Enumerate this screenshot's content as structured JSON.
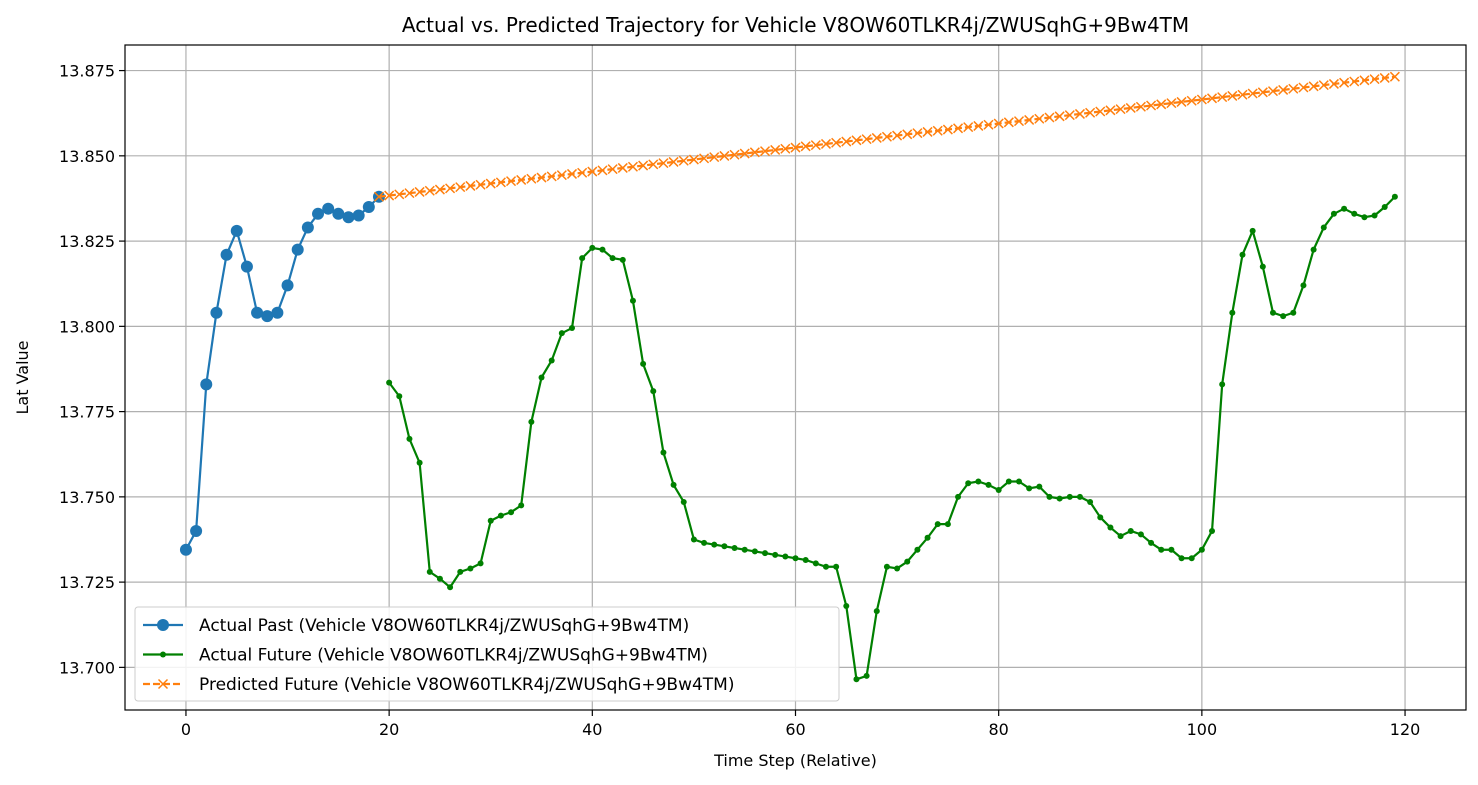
{
  "chart_data": {
    "type": "line",
    "title": "Actual vs. Predicted Trajectory for Vehicle V8OW60TLKR4j/ZWUSqhG+9Bw4TM",
    "xlabel": "Time Step (Relative)",
    "ylabel": "Lat Value",
    "xlim": [
      -6,
      126
    ],
    "ylim": [
      13.6875,
      13.8825
    ],
    "xticks": [
      0,
      20,
      40,
      60,
      80,
      100,
      120
    ],
    "yticks": [
      13.7,
      13.725,
      13.75,
      13.775,
      13.8,
      13.825,
      13.85,
      13.875
    ],
    "xtick_labels": [
      "0",
      "20",
      "40",
      "60",
      "80",
      "100",
      "120"
    ],
    "ytick_labels": [
      "13.700",
      "13.725",
      "13.750",
      "13.775",
      "13.800",
      "13.825",
      "13.850",
      "13.875"
    ],
    "grid": true,
    "legend_position": "lower-left",
    "series": [
      {
        "name": "Actual Past (Vehicle V8OW60TLKR4j/ZWUSqhG+9Bw4TM)",
        "color": "#1f77b4",
        "marker": "circle-large",
        "line": "solid",
        "x_start": 0,
        "values": [
          13.7345,
          13.74,
          13.783,
          13.804,
          13.821,
          13.828,
          13.8175,
          13.804,
          13.803,
          13.804,
          13.812,
          13.8225,
          13.829,
          13.833,
          13.8345,
          13.833,
          13.832,
          13.8325,
          13.835,
          13.838
        ]
      },
      {
        "name": "Actual Future (Vehicle V8OW60TLKR4j/ZWUSqhG+9Bw4TM)",
        "color": "#008000",
        "marker": "circle-small",
        "line": "solid",
        "x_start": 20,
        "values": [
          13.7835,
          13.7795,
          13.767,
          13.76,
          13.728,
          13.726,
          13.7235,
          13.728,
          13.729,
          13.7305,
          13.743,
          13.7445,
          13.7455,
          13.7475,
          13.772,
          13.785,
          13.79,
          13.798,
          13.7995,
          13.82,
          13.823,
          13.8225,
          13.82,
          13.8195,
          13.8075,
          13.789,
          13.781,
          13.763,
          13.7535,
          13.7485,
          13.7375,
          13.7365,
          13.736,
          13.7355,
          13.735,
          13.7345,
          13.734,
          13.7335,
          13.733,
          13.7325,
          13.732,
          13.7315,
          13.7305,
          13.7295,
          13.7295,
          13.718,
          13.6965,
          13.6975,
          13.7165,
          13.7295,
          13.729,
          13.731,
          13.7345,
          13.738,
          13.742,
          13.742,
          13.75,
          13.754,
          13.7545,
          13.7535,
          13.752,
          13.7545,
          13.7545,
          13.7525,
          13.753,
          13.75,
          13.7495,
          13.75,
          13.75,
          13.7485,
          13.744,
          13.741,
          13.7385,
          13.74,
          13.739,
          13.7365,
          13.7345,
          13.7345,
          13.732,
          13.732,
          13.7345,
          13.74,
          13.783,
          13.804,
          13.821,
          13.828,
          13.8175,
          13.804,
          13.803,
          13.804,
          13.812,
          13.8225,
          13.829,
          13.833,
          13.8345,
          13.833,
          13.832,
          13.8325,
          13.835,
          13.838
        ]
      },
      {
        "name": "Predicted Future (Vehicle V8OW60TLKR4j/ZWUSqhG+9Bw4TM)",
        "color": "#ff7f0e",
        "marker": "x",
        "line": "dashed",
        "x_start": 19,
        "linear_from": 13.838,
        "linear_to": 13.8732,
        "count": 101
      }
    ]
  }
}
